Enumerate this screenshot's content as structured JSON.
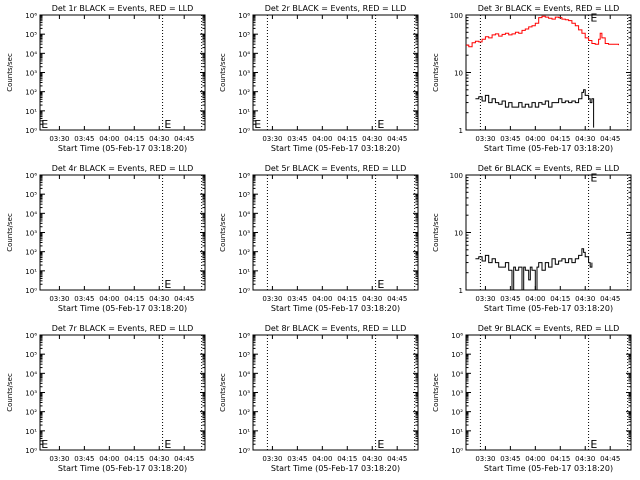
{
  "xticks": [
    "03:30",
    "03:45",
    "04:00",
    "04:15",
    "04:30",
    "04:45"
  ],
  "xlabel": "Start Time (05-Feb-17 03:18:20)",
  "ylabel": "Counts/sec",
  "marker_label": "E",
  "colors": {
    "events": "#000000",
    "lld": "#ff0000"
  },
  "chart_data": [
    {
      "type": "line",
      "title": "Det 1r BLACK = Events, RED = LLD",
      "scale": "log",
      "ylim": [
        1,
        1000000
      ],
      "yticks": [
        "10⁰",
        "10¹",
        "10²",
        "10³",
        "10⁴",
        "10⁵",
        "10⁶"
      ],
      "xlim": [
        "03:18:20",
        "04:57:30"
      ],
      "dotted_lines": [
        "04:32:00",
        "04:55:30"
      ],
      "markers": [
        {
          "t": "03:18:30",
          "y": 2
        },
        {
          "t": "04:32:30",
          "y": 2
        }
      ],
      "series": []
    },
    {
      "type": "line",
      "title": "Det 2r BLACK = Events, RED = LLD",
      "scale": "log",
      "ylim": [
        1,
        1000000
      ],
      "yticks": [
        "10⁰",
        "10¹",
        "10²",
        "10³",
        "10⁴",
        "10⁵",
        "10⁶"
      ],
      "xlim": [
        "03:18:20",
        "04:57:30"
      ],
      "dotted_lines": [
        "03:27:00",
        "04:32:00",
        "04:55:30"
      ],
      "markers": [
        {
          "t": "03:18:30",
          "y": 2
        },
        {
          "t": "04:32:30",
          "y": 2
        }
      ],
      "series": []
    },
    {
      "type": "line",
      "title": "Det 3r BLACK = Events, RED = LLD",
      "scale": "log",
      "ylim": [
        1,
        100
      ],
      "yticks": [
        "1",
        "10",
        "100"
      ],
      "xlim": [
        "03:18:20",
        "04:57:30"
      ],
      "dotted_lines": [
        "03:27:00",
        "04:32:00",
        "04:55:30"
      ],
      "markers": [
        {
          "t": "04:32:30",
          "y": 90
        }
      ],
      "series": [
        {
          "name": "LLD",
          "color": "#ff0000",
          "points": [
            [
              "03:18:20",
              30
            ],
            [
              "03:20:00",
              28
            ],
            [
              "03:22:00",
              33
            ],
            [
              "03:24:00",
              35
            ],
            [
              "03:26:00",
              34
            ],
            [
              "03:28:00",
              38
            ],
            [
              "03:30:00",
              42
            ],
            [
              "03:32:00",
              40
            ],
            [
              "03:34:00",
              45
            ],
            [
              "03:36:00",
              47
            ],
            [
              "03:38:00",
              43
            ],
            [
              "03:40:00",
              46
            ],
            [
              "03:42:00",
              48
            ],
            [
              "03:44:00",
              45
            ],
            [
              "03:46:00",
              47
            ],
            [
              "03:48:00",
              50
            ],
            [
              "03:50:00",
              48
            ],
            [
              "03:52:00",
              54
            ],
            [
              "03:54:00",
              57
            ],
            [
              "03:56:00",
              62
            ],
            [
              "03:58:00",
              65
            ],
            [
              "04:00:00",
              72
            ],
            [
              "04:02:00",
              90
            ],
            [
              "04:04:00",
              95
            ],
            [
              "04:06:00",
              92
            ],
            [
              "04:08:00",
              88
            ],
            [
              "04:10:00",
              85
            ],
            [
              "04:12:00",
              92
            ],
            [
              "04:14:00",
              90
            ],
            [
              "04:16:00",
              85
            ],
            [
              "04:18:00",
              83
            ],
            [
              "04:20:00",
              80
            ],
            [
              "04:22:00",
              72
            ],
            [
              "04:24:00",
              65
            ],
            [
              "04:26:00",
              55
            ],
            [
              "04:28:00",
              48
            ],
            [
              "04:30:00",
              40
            ],
            [
              "04:32:00",
              36
            ],
            [
              "04:34:00",
              32
            ],
            [
              "04:36:00",
              31
            ],
            [
              "04:38:00",
              38
            ],
            [
              "04:39:00",
              48
            ],
            [
              "04:40:00",
              40
            ],
            [
              "04:42:00",
              32
            ],
            [
              "04:44:00",
              31
            ],
            [
              "04:46:00",
              31
            ],
            [
              "04:48:00",
              31
            ],
            [
              "04:50:00",
              30
            ]
          ]
        },
        {
          "name": "Events",
          "color": "#000000",
          "points": [
            [
              "03:24:00",
              3.5
            ],
            [
              "03:26:00",
              3.8
            ],
            [
              "03:28:00",
              3.2
            ],
            [
              "03:30:00",
              4.0
            ],
            [
              "03:32:00",
              3.0
            ],
            [
              "03:34:00",
              3.5
            ],
            [
              "03:36:00",
              3.0
            ],
            [
              "03:38:00",
              2.8
            ],
            [
              "03:40:00",
              3.2
            ],
            [
              "03:42:00",
              2.5
            ],
            [
              "03:44:00",
              3.0
            ],
            [
              "03:46:00",
              2.5
            ],
            [
              "03:48:00",
              2.5
            ],
            [
              "03:50:00",
              3.0
            ],
            [
              "03:52:00",
              2.5
            ],
            [
              "03:54:00",
              2.8
            ],
            [
              "03:56:00",
              2.5
            ],
            [
              "03:58:00",
              3.0
            ],
            [
              "04:00:00",
              2.5
            ],
            [
              "04:02:00",
              3.0
            ],
            [
              "04:04:00",
              2.8
            ],
            [
              "04:06:00",
              3.2
            ],
            [
              "04:08:00",
              2.5
            ],
            [
              "04:10:00",
              3.0
            ],
            [
              "04:12:00",
              3.0
            ],
            [
              "04:14:00",
              3.5
            ],
            [
              "04:16:00",
              3.0
            ],
            [
              "04:18:00",
              3.2
            ],
            [
              "04:20:00",
              3.0
            ],
            [
              "04:22:00",
              3.2
            ],
            [
              "04:24:00",
              3.0
            ],
            [
              "04:26:00",
              3.5
            ],
            [
              "04:28:00",
              4.5
            ],
            [
              "04:29:00",
              5.0
            ],
            [
              "04:30:00",
              4.0
            ],
            [
              "04:32:00",
              3.5
            ],
            [
              "04:33:00",
              3.0
            ],
            [
              "04:34:00",
              3.5
            ],
            [
              "04:35:00",
              1.1
            ]
          ]
        }
      ]
    },
    {
      "type": "line",
      "title": "Det 4r BLACK = Events, RED = LLD",
      "scale": "log",
      "ylim": [
        1,
        1000000
      ],
      "yticks": [
        "10⁰",
        "10¹",
        "10²",
        "10³",
        "10⁴",
        "10⁵",
        "10⁶"
      ],
      "xlim": [
        "03:18:20",
        "04:57:30"
      ],
      "dotted_lines": [
        "04:32:00",
        "04:55:30"
      ],
      "markers": [
        {
          "t": "04:32:30",
          "y": 2
        }
      ],
      "series": []
    },
    {
      "type": "line",
      "title": "Det 5r BLACK = Events, RED = LLD",
      "scale": "log",
      "ylim": [
        1,
        1000000
      ],
      "yticks": [
        "10⁰",
        "10¹",
        "10²",
        "10³",
        "10⁴",
        "10⁵",
        "10⁶"
      ],
      "xlim": [
        "03:18:20",
        "04:57:30"
      ],
      "dotted_lines": [
        "03:27:00",
        "04:32:00",
        "04:55:30"
      ],
      "markers": [
        {
          "t": "04:32:30",
          "y": 2
        }
      ],
      "series": []
    },
    {
      "type": "line",
      "title": "Det 6r BLACK = Events, RED = LLD",
      "scale": "log",
      "ylim": [
        1,
        100
      ],
      "yticks": [
        "1",
        "10",
        "100"
      ],
      "xlim": [
        "03:18:20",
        "04:57:30"
      ],
      "dotted_lines": [
        "03:27:00",
        "04:32:00",
        "04:55:30"
      ],
      "markers": [
        {
          "t": "04:32:30",
          "y": 90
        }
      ],
      "series": [
        {
          "name": "Events",
          "color": "#000000",
          "points": [
            [
              "03:24:00",
              3.5
            ],
            [
              "03:26:00",
              3.8
            ],
            [
              "03:28:00",
              3.2
            ],
            [
              "03:30:00",
              4.0
            ],
            [
              "03:32:00",
              3.0
            ],
            [
              "03:34:00",
              3.5
            ],
            [
              "03:36:00",
              3.0
            ],
            [
              "03:38:00",
              2.5
            ],
            [
              "03:40:00",
              2.5
            ],
            [
              "03:42:00",
              3.0
            ],
            [
              "03:44:00",
              2.2
            ],
            [
              "03:46:00",
              1.0
            ],
            [
              "03:47:00",
              2.5
            ],
            [
              "03:48:00",
              2.2
            ],
            [
              "03:50:00",
              2.5
            ],
            [
              "03:52:00",
              1.0
            ],
            [
              "03:53:00",
              2.5
            ],
            [
              "03:54:00",
              2.2
            ],
            [
              "03:56:00",
              1.5
            ],
            [
              "03:57:00",
              2.5
            ],
            [
              "03:58:00",
              2.2
            ],
            [
              "04:00:00",
              1.0
            ],
            [
              "04:01:00",
              2.5
            ],
            [
              "04:02:00",
              3.0
            ],
            [
              "04:04:00",
              2.2
            ],
            [
              "04:06:00",
              3.0
            ],
            [
              "04:08:00",
              2.5
            ],
            [
              "04:10:00",
              3.5
            ],
            [
              "04:12:00",
              2.8
            ],
            [
              "04:14:00",
              3.2
            ],
            [
              "04:16:00",
              3.5
            ],
            [
              "04:18:00",
              3.0
            ],
            [
              "04:20:00",
              3.5
            ],
            [
              "04:22:00",
              3.0
            ],
            [
              "04:24:00",
              3.5
            ],
            [
              "04:26:00",
              4.0
            ],
            [
              "04:28:00",
              5.2
            ],
            [
              "04:29:00",
              4.5
            ],
            [
              "04:30:00",
              3.8
            ],
            [
              "04:32:00",
              3.0
            ],
            [
              "04:33:00",
              2.5
            ],
            [
              "04:34:00",
              3.0
            ]
          ]
        }
      ]
    },
    {
      "type": "line",
      "title": "Det 7r BLACK = Events, RED = LLD",
      "scale": "log",
      "ylim": [
        1,
        1000000
      ],
      "yticks": [
        "10⁰",
        "10¹",
        "10²",
        "10³",
        "10⁴",
        "10⁵",
        "10⁶"
      ],
      "xlim": [
        "03:18:20",
        "04:57:30"
      ],
      "dotted_lines": [
        "04:32:00",
        "04:55:30"
      ],
      "markers": [
        {
          "t": "03:18:30",
          "y": 2
        },
        {
          "t": "04:32:30",
          "y": 2
        }
      ],
      "series": []
    },
    {
      "type": "line",
      "title": "Det 8r BLACK = Events, RED = LLD",
      "scale": "log",
      "ylim": [
        1,
        1000000
      ],
      "yticks": [
        "10⁰",
        "10¹",
        "10²",
        "10³",
        "10⁴",
        "10⁵",
        "10⁶"
      ],
      "xlim": [
        "03:18:20",
        "04:57:30"
      ],
      "dotted_lines": [
        "03:27:00",
        "04:32:00",
        "04:55:30"
      ],
      "markers": [
        {
          "t": "04:32:30",
          "y": 2
        }
      ],
      "series": []
    },
    {
      "type": "line",
      "title": "Det 9r BLACK = Events, RED = LLD",
      "scale": "log",
      "ylim": [
        1,
        1000000
      ],
      "yticks": [
        "10⁰",
        "10¹",
        "10²",
        "10³",
        "10⁴",
        "10⁵",
        "10⁶"
      ],
      "xlim": [
        "03:18:20",
        "04:57:30"
      ],
      "dotted_lines": [
        "03:27:00",
        "04:32:00",
        "04:55:30"
      ],
      "markers": [
        {
          "t": "04:32:30",
          "y": 2
        }
      ],
      "series": []
    }
  ]
}
